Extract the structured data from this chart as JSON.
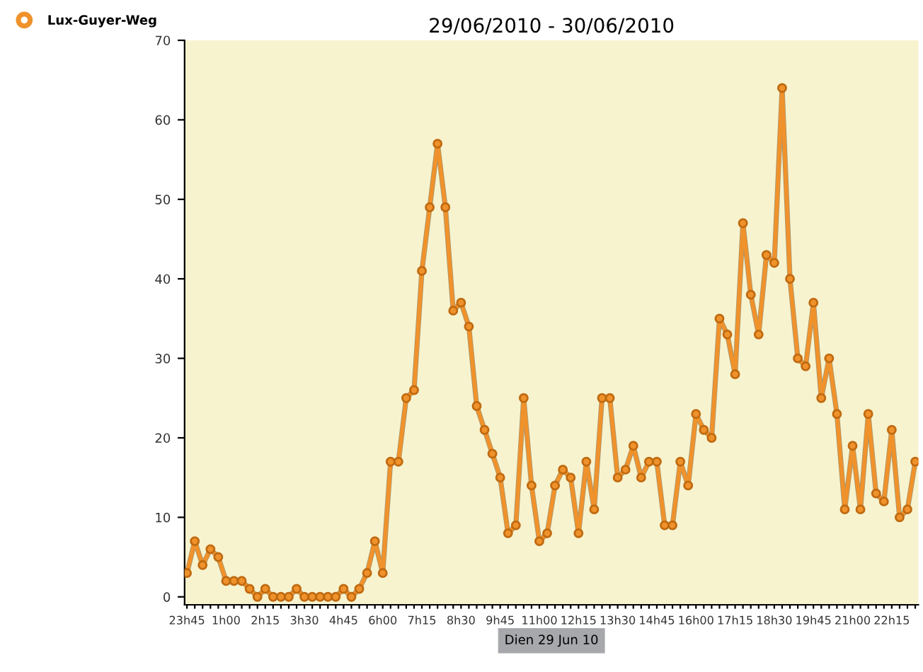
{
  "chart_data": {
    "type": "line",
    "title": "29/06/2010 - 30/06/2010",
    "xlabel": "Dien 29 Jun 10",
    "categories": [
      "23h45",
      null,
      null,
      null,
      null,
      "1h00",
      null,
      null,
      null,
      null,
      "2h15",
      null,
      null,
      null,
      null,
      "3h30",
      null,
      null,
      null,
      null,
      "4h45",
      null,
      null,
      null,
      null,
      "6h00",
      null,
      null,
      null,
      null,
      "7h15",
      null,
      null,
      null,
      null,
      "8h30",
      null,
      null,
      null,
      null,
      "9h45",
      null,
      null,
      null,
      null,
      "11h00",
      null,
      null,
      null,
      null,
      "12h15",
      null,
      null,
      null,
      null,
      "13h30",
      null,
      null,
      null,
      null,
      "14h45",
      null,
      null,
      null,
      null,
      "16h00",
      null,
      null,
      null,
      null,
      "17h15",
      null,
      null,
      null,
      null,
      "18h30",
      null,
      null,
      null,
      null,
      "19h45",
      null,
      null,
      null,
      null,
      "21h00",
      null,
      null,
      null,
      null,
      "22h15",
      null,
      null,
      null
    ],
    "series": [
      {
        "name": "Lux-Guyer-Weg",
        "color": "#f0922b",
        "values": [
          3,
          7,
          4,
          6,
          5,
          2,
          2,
          2,
          1,
          0,
          1,
          0,
          0,
          0,
          1,
          0,
          0,
          0,
          0,
          0,
          1,
          0,
          1,
          3,
          7,
          3,
          17,
          17,
          25,
          26,
          41,
          49,
          57,
          49,
          36,
          37,
          34,
          24,
          21,
          18,
          15,
          8,
          9,
          25,
          14,
          7,
          8,
          14,
          16,
          15,
          8,
          17,
          11,
          25,
          25,
          15,
          16,
          19,
          15,
          17,
          17,
          9,
          9,
          17,
          14,
          23,
          21,
          20,
          35,
          33,
          28,
          47,
          38,
          33,
          43,
          42,
          64,
          40,
          30,
          29,
          37,
          25,
          30,
          23,
          11,
          19,
          11,
          23,
          13,
          12,
          21,
          10,
          11,
          17
        ]
      }
    ],
    "ylim": [
      -1,
      70
    ],
    "yticks": [
      0,
      10,
      20,
      30,
      40,
      50,
      60,
      70
    ],
    "grid": false,
    "legend": "top left",
    "marker": "circle",
    "line_style": "solid"
  }
}
